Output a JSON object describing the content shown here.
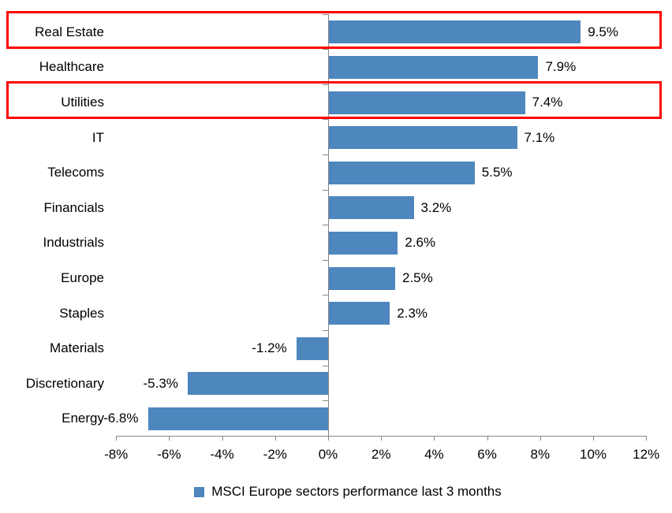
{
  "chart_data": {
    "type": "bar",
    "orientation": "horizontal",
    "title": "",
    "legend": "MSCI Europe sectors performance last 3 months",
    "legend_position": "bottom-center",
    "categories": [
      "Real Estate",
      "Healthcare",
      "Utilities",
      "IT",
      "Telecoms",
      "Financials",
      "Industrials",
      "Europe",
      "Staples",
      "Materials",
      "Discretionary",
      "Energy"
    ],
    "values": [
      9.5,
      7.9,
      7.4,
      7.1,
      5.5,
      3.2,
      2.6,
      2.5,
      2.3,
      -1.2,
      -5.3,
      -6.8
    ],
    "value_labels": [
      "9.5%",
      "7.9%",
      "7.4%",
      "7.1%",
      "5.5%",
      "3.2%",
      "2.6%",
      "2.5%",
      "2.3%",
      "-1.2%",
      "-5.3%",
      "-6.8%"
    ],
    "xlim": [
      -8,
      12
    ],
    "x_tick_values": [
      -8,
      -6,
      -4,
      -2,
      0,
      2,
      4,
      6,
      8,
      10,
      12
    ],
    "x_ticks": [
      "-8%",
      "-6%",
      "-4%",
      "-2%",
      "0%",
      "2%",
      "4%",
      "6%",
      "8%",
      "10%",
      "12%"
    ],
    "grid": false,
    "bar_color": "#4E86BE",
    "axis_color": "#868686",
    "text_color": "#000000",
    "highlight_color": "#FF0000",
    "highlighted_rows": [
      0,
      2
    ],
    "highlighted_categories": [
      "Real Estate",
      "Utilities"
    ]
  }
}
